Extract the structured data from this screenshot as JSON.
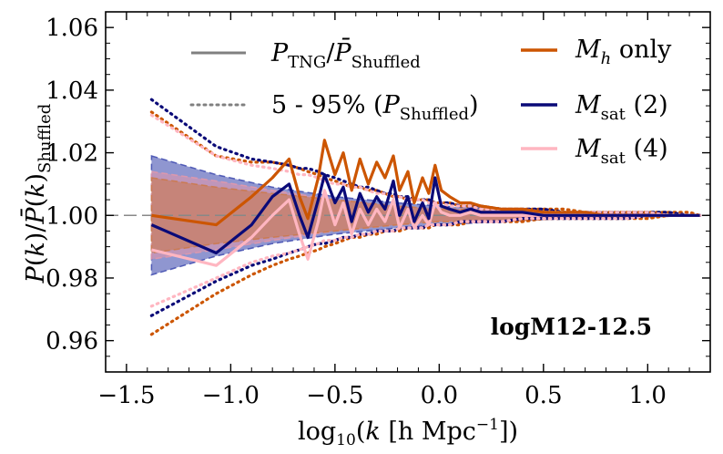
{
  "chart_data": {
    "type": "line",
    "xlabel": "log10(k [h Mpc^-1])",
    "ylabel": "P(k)/P̄(k)_Shuffled",
    "xlim": [
      -1.6,
      1.3
    ],
    "ylim": [
      0.95,
      1.065
    ],
    "xticks": [
      -1.5,
      -1.0,
      -0.5,
      0.0,
      0.5,
      1.0
    ],
    "xtick_labels": [
      "−1.5",
      "−1.0",
      "−0.5",
      "0.0",
      "0.5",
      "1.0"
    ],
    "yticks": [
      0.96,
      0.98,
      1.0,
      1.02,
      1.04,
      1.06
    ],
    "ytick_labels": [
      "0.96",
      "0.98",
      "1.00",
      "1.02",
      "1.04",
      "1.06"
    ],
    "annotation": "logM12-12.5",
    "reference_line": 1.0,
    "legend": {
      "left": [
        {
          "label": "P_TNG/P̄_Shuffled",
          "style": "solid",
          "color": "#808080"
        },
        {
          "label": "5 - 95% (P_Shuffled)",
          "style": "dotted",
          "color": "#808080"
        }
      ],
      "right": [
        {
          "label": "M_h only",
          "color": "#CC5500"
        },
        {
          "label": "M_sat (2)",
          "color": "#0A0A78"
        },
        {
          "label": "M_sat (4)",
          "color": "#FFB6C1"
        }
      ]
    },
    "series": [
      {
        "name": "M_h only",
        "color": "#CC5500",
        "x": [
          -1.38,
          -1.07,
          -0.9,
          -0.8,
          -0.72,
          -0.67,
          -0.63,
          -0.58,
          -0.55,
          -0.5,
          -0.46,
          -0.42,
          -0.38,
          -0.34,
          -0.3,
          -0.26,
          -0.22,
          -0.19,
          -0.15,
          -0.12,
          -0.08,
          -0.05,
          -0.02,
          0.01,
          0.05,
          0.1,
          0.15,
          0.2,
          0.3,
          0.4,
          0.5,
          0.6,
          0.7,
          0.8,
          0.9,
          1.0,
          1.1,
          1.2,
          1.25
        ],
        "y": [
          1.0,
          0.997,
          1.006,
          1.012,
          1.018,
          1.006,
          0.999,
          1.012,
          1.024,
          1.013,
          1.02,
          1.008,
          1.018,
          1.01,
          1.017,
          1.012,
          1.019,
          1.008,
          1.014,
          1.004,
          1.012,
          1.007,
          1.016,
          1.008,
          1.006,
          1.004,
          1.004,
          1.003,
          1.002,
          1.002,
          1.001,
          1.001,
          1.001,
          1.0,
          1.0,
          1.0,
          1.0,
          1.0,
          1.0
        ],
        "band_low": [
          0.962,
          0.975,
          0.981,
          0.984,
          0.986,
          0.987,
          0.988,
          0.989,
          0.99,
          0.991,
          0.992,
          0.993,
          0.993,
          0.994,
          0.994,
          0.995,
          0.995,
          0.995,
          0.996,
          0.996,
          0.996,
          0.996,
          0.997,
          0.997,
          0.997,
          0.997,
          0.998,
          0.998,
          0.998,
          0.998,
          0.999,
          0.999,
          0.999,
          0.999,
          0.999,
          0.999,
          1.0,
          1.0,
          1.0
        ],
        "band_high": [
          1.033,
          1.019,
          1.017,
          1.017,
          1.016,
          1.015,
          1.014,
          1.013,
          1.012,
          1.011,
          1.01,
          1.009,
          1.009,
          1.008,
          1.008,
          1.007,
          1.006,
          1.006,
          1.005,
          1.005,
          1.005,
          1.005,
          1.004,
          1.004,
          1.004,
          1.003,
          1.003,
          1.003,
          1.002,
          1.002,
          1.002,
          1.002,
          1.001,
          1.001,
          1.001,
          1.001,
          1.001,
          1.001,
          1.0
        ]
      },
      {
        "name": "M_sat (2)",
        "color": "#0A0A78",
        "x": [
          -1.38,
          -1.07,
          -0.9,
          -0.8,
          -0.72,
          -0.67,
          -0.63,
          -0.58,
          -0.55,
          -0.5,
          -0.46,
          -0.42,
          -0.38,
          -0.34,
          -0.3,
          -0.26,
          -0.22,
          -0.19,
          -0.15,
          -0.12,
          -0.08,
          -0.05,
          -0.02,
          0.01,
          0.05,
          0.1,
          0.15,
          0.2,
          0.3,
          0.4,
          0.5,
          0.6,
          0.7,
          0.8,
          0.9,
          1.0,
          1.1,
          1.2,
          1.25
        ],
        "y": [
          0.997,
          0.988,
          0.997,
          1.006,
          1.01,
          1.0,
          0.993,
          1.005,
          1.013,
          1.004,
          1.009,
          0.998,
          1.007,
          1.001,
          1.006,
          1.002,
          1.011,
          1.0,
          1.006,
          0.998,
          1.004,
          0.999,
          1.012,
          1.003,
          1.002,
          1.001,
          1.002,
          1.001,
          1.001,
          1.001,
          1.0,
          1.0,
          1.0,
          1.0,
          1.0,
          1.0,
          1.0,
          1.0,
          1.0
        ],
        "band_low": [
          0.968,
          0.979,
          0.984,
          0.986,
          0.988,
          0.989,
          0.99,
          0.991,
          0.991,
          0.992,
          0.993,
          0.993,
          0.994,
          0.994,
          0.995,
          0.995,
          0.995,
          0.996,
          0.996,
          0.996,
          0.996,
          0.997,
          0.997,
          0.997,
          0.997,
          0.998,
          0.998,
          0.998,
          0.998,
          0.999,
          0.999,
          0.999,
          0.999,
          0.999,
          0.999,
          1.0,
          1.0,
          1.0,
          1.0
        ],
        "band_high": [
          1.037,
          1.022,
          1.018,
          1.017,
          1.016,
          1.015,
          1.015,
          1.014,
          1.013,
          1.012,
          1.011,
          1.01,
          1.009,
          1.009,
          1.008,
          1.007,
          1.007,
          1.006,
          1.006,
          1.005,
          1.005,
          1.005,
          1.004,
          1.004,
          1.004,
          1.003,
          1.003,
          1.003,
          1.002,
          1.002,
          1.002,
          1.001,
          1.001,
          1.001,
          1.001,
          1.001,
          1.001,
          1.0,
          1.0
        ]
      },
      {
        "name": "M_sat (4)",
        "color": "#FFB6C1",
        "x": [
          -1.38,
          -1.07,
          -0.9,
          -0.8,
          -0.72,
          -0.67,
          -0.63,
          -0.58,
          -0.55,
          -0.5,
          -0.46,
          -0.42,
          -0.38,
          -0.34,
          -0.3,
          -0.26,
          -0.22,
          -0.19,
          -0.15,
          -0.12,
          -0.08,
          -0.05,
          -0.02,
          0.01,
          0.05,
          0.1,
          0.15,
          0.2,
          0.3,
          0.4,
          0.5,
          0.6,
          0.7,
          0.8,
          0.9,
          1.0,
          1.1,
          1.2,
          1.25
        ],
        "y": [
          0.989,
          0.984,
          0.993,
          1.0,
          1.005,
          0.994,
          0.986,
          0.998,
          1.008,
          0.997,
          1.004,
          0.994,
          1.002,
          0.997,
          1.002,
          0.998,
          1.005,
          0.996,
          1.002,
          0.996,
          1.0,
          0.997,
          1.004,
          1.001,
          1.0,
          1.0,
          1.001,
          1.0,
          1.0,
          1.0,
          1.0,
          1.0,
          1.0,
          1.0,
          1.0,
          1.0,
          1.0,
          1.0,
          1.0
        ],
        "band_low": [
          0.971,
          0.98,
          0.985,
          0.987,
          0.988,
          0.989,
          0.99,
          0.991,
          0.992,
          0.992,
          0.993,
          0.993,
          0.994,
          0.994,
          0.995,
          0.995,
          0.995,
          0.996,
          0.996,
          0.996,
          0.996,
          0.997,
          0.997,
          0.997,
          0.997,
          0.998,
          0.998,
          0.998,
          0.998,
          0.999,
          0.999,
          0.999,
          0.999,
          0.999,
          0.999,
          1.0,
          1.0,
          1.0,
          1.0
        ],
        "band_high": [
          1.032,
          1.019,
          1.016,
          1.015,
          1.014,
          1.013,
          1.013,
          1.012,
          1.011,
          1.01,
          1.01,
          1.009,
          1.009,
          1.008,
          1.007,
          1.007,
          1.006,
          1.006,
          1.005,
          1.005,
          1.005,
          1.004,
          1.004,
          1.004,
          1.003,
          1.003,
          1.003,
          1.002,
          1.002,
          1.002,
          1.001,
          1.001,
          1.001,
          1.001,
          1.001,
          1.001,
          1.0,
          1.0,
          1.0
        ]
      }
    ],
    "shaded_bands": [
      {
        "name": "M_sat (2) ratio spread",
        "color": "#3340AA",
        "x": [
          -1.38,
          -1.07,
          -0.8,
          -0.5,
          -0.2,
          0.0,
          0.3,
          0.6,
          1.0,
          1.25
        ],
        "low": [
          0.981,
          0.987,
          0.991,
          0.994,
          0.996,
          0.997,
          0.998,
          0.999,
          0.9995,
          1.0
        ],
        "high": [
          1.019,
          1.013,
          1.009,
          1.006,
          1.004,
          1.003,
          1.002,
          1.001,
          1.0005,
          1.0
        ]
      },
      {
        "name": "M_sat (4) ratio spread",
        "color": "#E898A8",
        "x": [
          -1.38,
          -1.07,
          -0.8,
          -0.5,
          -0.2,
          0.0,
          0.3,
          0.6,
          1.0,
          1.25
        ],
        "low": [
          0.986,
          0.989,
          0.992,
          0.995,
          0.997,
          0.998,
          0.998,
          0.999,
          0.9995,
          1.0
        ],
        "high": [
          1.014,
          1.011,
          1.008,
          1.005,
          1.003,
          1.002,
          1.002,
          1.001,
          1.0005,
          1.0
        ]
      },
      {
        "name": "M_h only ratio spread",
        "color": "#CC7744",
        "x": [
          -1.38,
          -1.07,
          -0.8,
          -0.5,
          -0.2,
          0.0,
          0.3,
          0.6,
          1.0,
          1.25
        ],
        "low": [
          0.988,
          0.991,
          0.993,
          0.995,
          0.997,
          0.998,
          0.998,
          0.999,
          0.9995,
          1.0
        ],
        "high": [
          1.012,
          1.009,
          1.007,
          1.005,
          1.003,
          1.002,
          1.002,
          1.001,
          1.0005,
          1.0
        ]
      }
    ]
  }
}
